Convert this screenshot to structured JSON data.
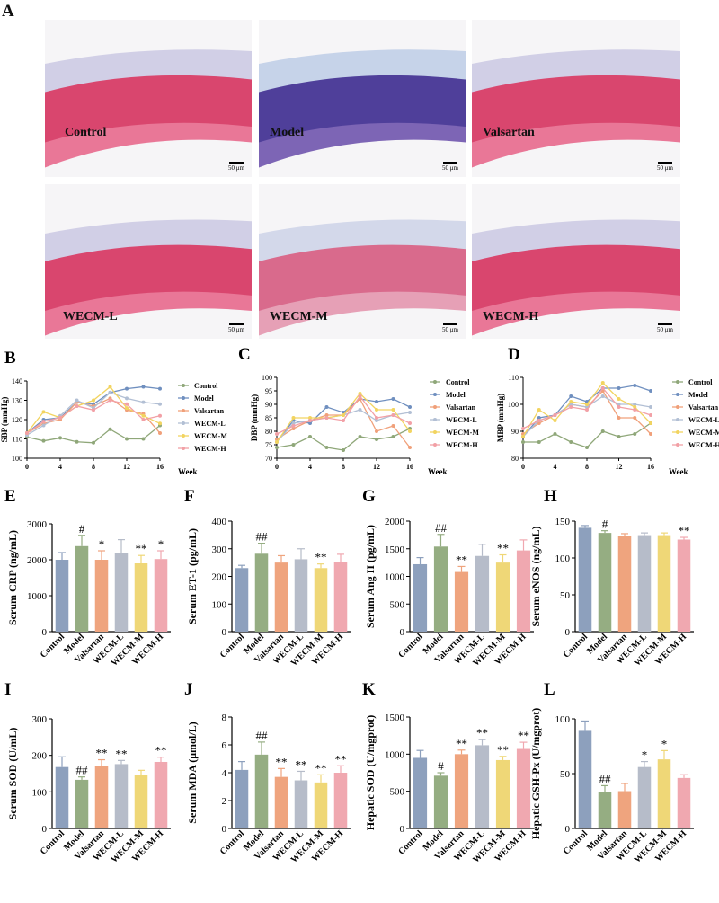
{
  "panel_a": {
    "letter": "A",
    "scale_label": "50 μm",
    "images": [
      {
        "label": "Control",
        "scheme": "pink"
      },
      {
        "label": "Model",
        "scheme": "purple"
      },
      {
        "label": "Valsartan",
        "scheme": "pink"
      },
      {
        "label": "WECM-L",
        "scheme": "pink"
      },
      {
        "label": "WECM-M",
        "scheme": "lightpink"
      },
      {
        "label": "WECM-H",
        "scheme": "pink"
      }
    ]
  },
  "colors": {
    "Control": "#8fa779",
    "Model": "#6f8fbf",
    "Valsartan": "#f0a07a",
    "WECM-L": "#b2bfd4",
    "WECM-M": "#f2d460",
    "WECM-H": "#f2a0a6"
  },
  "bar_colors": [
    "#8da0bd",
    "#95ad82",
    "#efa47e",
    "#b6bcc9",
    "#efd777",
    "#f0a8b0"
  ],
  "groups": [
    "Control",
    "Model",
    "Valsartan",
    "WECM-L",
    "WECM-M",
    "WECM-H"
  ],
  "chart_data": [
    {
      "id": "B",
      "type": "line",
      "ylabel": "SBP (mmHg)",
      "xlabel": "Week",
      "ylim": [
        100,
        140
      ],
      "yticks": [
        100,
        110,
        120,
        130,
        140
      ],
      "xlim": [
        0,
        16
      ],
      "xticks": [
        0,
        4,
        8,
        12,
        16
      ],
      "x": [
        0,
        2,
        4,
        6,
        8,
        10,
        12,
        14,
        16
      ],
      "series": [
        {
          "name": "Control",
          "values": [
            111,
            109,
            110.5,
            108.5,
            108,
            115,
            110,
            110,
            117
          ]
        },
        {
          "name": "Model",
          "values": [
            113,
            120,
            121,
            129,
            128,
            134,
            136,
            137,
            136
          ]
        },
        {
          "name": "Valsartan",
          "values": [
            113,
            118,
            120,
            129,
            127,
            131,
            125,
            123,
            113
          ]
        },
        {
          "name": "WECM-L",
          "values": [
            112,
            117,
            122,
            130,
            126,
            134,
            131,
            129,
            128
          ]
        },
        {
          "name": "WECM-M",
          "values": [
            113,
            124,
            121,
            127,
            130,
            137,
            126,
            122,
            118
          ]
        },
        {
          "name": "WECM-H",
          "values": [
            113,
            119,
            121,
            127,
            125,
            130,
            128,
            120,
            122
          ]
        }
      ]
    },
    {
      "id": "C",
      "type": "line",
      "ylabel": "DBP (mmHg)",
      "xlabel": "Week",
      "ylim": [
        70,
        100
      ],
      "yticks": [
        70,
        75,
        80,
        85,
        90,
        95,
        100
      ],
      "xlim": [
        0,
        16
      ],
      "xticks": [
        0,
        4,
        8,
        12,
        16
      ],
      "x": [
        0,
        2,
        4,
        6,
        8,
        10,
        12,
        14,
        16
      ],
      "series": [
        {
          "name": "Control",
          "values": [
            74,
            75,
            78,
            74,
            73,
            78,
            77,
            78,
            81
          ]
        },
        {
          "name": "Model",
          "values": [
            76,
            84,
            83,
            89,
            87,
            92,
            91,
            92,
            89
          ]
        },
        {
          "name": "Valsartan",
          "values": [
            77,
            81,
            84,
            86,
            86,
            92,
            80,
            82,
            74
          ]
        },
        {
          "name": "WECM-L",
          "values": [
            76,
            83,
            84,
            85,
            86,
            88,
            84,
            86,
            87
          ]
        },
        {
          "name": "WECM-M",
          "values": [
            76,
            85,
            85,
            85,
            86,
            94,
            88,
            88,
            80
          ]
        },
        {
          "name": "WECM-H",
          "values": [
            79,
            82,
            84,
            85,
            84,
            93,
            85,
            86,
            83
          ]
        }
      ]
    },
    {
      "id": "D",
      "type": "line",
      "ylabel": "MBP (mmHg)",
      "xlabel": "Week",
      "ylim": [
        80,
        110
      ],
      "yticks": [
        80,
        90,
        100,
        110
      ],
      "xlim": [
        0,
        16
      ],
      "xticks": [
        0,
        4,
        8,
        12,
        16
      ],
      "x": [
        0,
        2,
        4,
        6,
        8,
        10,
        12,
        14,
        16
      ],
      "series": [
        {
          "name": "Control",
          "values": [
            86,
            86,
            89,
            86,
            84,
            90,
            88,
            89,
            93
          ]
        },
        {
          "name": "Model",
          "values": [
            88,
            95,
            96,
            103,
            101,
            106,
            106,
            107,
            105
          ]
        },
        {
          "name": "Valsartan",
          "values": [
            89,
            93,
            96,
            100,
            99,
            105,
            95,
            95,
            89
          ]
        },
        {
          "name": "WECM-L",
          "values": [
            88,
            94,
            96,
            100,
            99,
            103,
            100,
            100,
            99
          ]
        },
        {
          "name": "WECM-M",
          "values": [
            88,
            98,
            94,
            101,
            100,
            108,
            102,
            99,
            93
          ]
        },
        {
          "name": "WECM-H",
          "values": [
            91,
            94,
            96,
            99,
            98,
            106,
            99,
            98,
            96
          ]
        }
      ]
    },
    {
      "id": "E",
      "type": "bar",
      "ylabel": "Serum CRP (ng/mL)",
      "ylim": [
        0,
        3000
      ],
      "yticks": [
        0,
        1000,
        2000,
        3000
      ],
      "values": [
        2000,
        2380,
        2000,
        2180,
        1900,
        2020
      ],
      "errors": [
        200,
        300,
        250,
        380,
        220,
        230
      ],
      "marks": [
        "",
        "#",
        "*",
        "",
        "**",
        "*"
      ]
    },
    {
      "id": "F",
      "type": "bar",
      "ylabel": "Serum ET-1 (pg/mL)",
      "ylim": [
        0,
        400
      ],
      "yticks": [
        0,
        100,
        200,
        300,
        400
      ],
      "values": [
        230,
        282,
        250,
        262,
        230,
        252
      ],
      "errors": [
        10,
        38,
        25,
        38,
        15,
        28
      ],
      "marks": [
        "",
        "##",
        "",
        "",
        "**",
        ""
      ]
    },
    {
      "id": "G",
      "type": "bar",
      "ylabel": "Serum Ang II (pg/mL)",
      "ylim": [
        0,
        2000
      ],
      "yticks": [
        0,
        500,
        1000,
        1500,
        2000
      ],
      "values": [
        1220,
        1540,
        1080,
        1370,
        1250,
        1470
      ],
      "errors": [
        120,
        220,
        100,
        210,
        140,
        190
      ],
      "marks": [
        "",
        "##",
        "**",
        "",
        "**",
        ""
      ]
    },
    {
      "id": "H",
      "type": "bar",
      "ylabel": "Serum eNOS (ng/mL)",
      "ylim": [
        0,
        150
      ],
      "yticks": [
        0,
        50,
        100,
        150
      ],
      "values": [
        141,
        134,
        130,
        131,
        131,
        125
      ],
      "errors": [
        3,
        3,
        3,
        3,
        3,
        3
      ],
      "marks": [
        "",
        "#",
        "",
        "",
        "",
        "**"
      ]
    },
    {
      "id": "I",
      "type": "bar",
      "ylabel": "Serum SOD (U/mL)",
      "ylim": [
        0,
        300
      ],
      "yticks": [
        0,
        100,
        200,
        300
      ],
      "values": [
        168,
        133,
        170,
        176,
        147,
        182
      ],
      "errors": [
        28,
        8,
        18,
        10,
        12,
        13
      ],
      "marks": [
        "",
        "##",
        "**",
        "**",
        "",
        "**"
      ]
    },
    {
      "id": "J",
      "type": "bar",
      "ylabel": "Serum MDA (μmol/L)",
      "ylim": [
        0,
        8
      ],
      "yticks": [
        0,
        2,
        4,
        6,
        8
      ],
      "values": [
        4.2,
        5.3,
        3.7,
        3.45,
        3.3,
        4.0
      ],
      "errors": [
        0.6,
        0.9,
        0.6,
        0.65,
        0.55,
        0.5
      ],
      "marks": [
        "",
        "##",
        "**",
        "**",
        "**",
        "**"
      ]
    },
    {
      "id": "K",
      "type": "bar",
      "ylabel": "Hepatic SOD (U/mgprot)",
      "ylim": [
        0,
        1500
      ],
      "yticks": [
        0,
        500,
        1000,
        1500
      ],
      "values": [
        950,
        710,
        1000,
        1120,
        920,
        1070
      ],
      "errors": [
        100,
        40,
        55,
        75,
        50,
        90
      ],
      "marks": [
        "",
        "#",
        "**",
        "**",
        "**",
        "**"
      ]
    },
    {
      "id": "L",
      "type": "bar",
      "ylabel": "Hepatic GSH-Px (U/mgprot)",
      "ylim": [
        0,
        100
      ],
      "yticks": [
        0,
        50,
        100
      ],
      "values": [
        89,
        33,
        34,
        56,
        63,
        46
      ],
      "errors": [
        9,
        6,
        7,
        5,
        8,
        3
      ],
      "marks": [
        "",
        "##",
        "",
        "*",
        "*",
        ""
      ]
    }
  ]
}
